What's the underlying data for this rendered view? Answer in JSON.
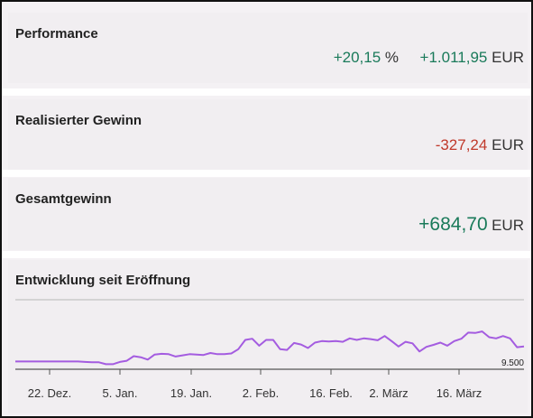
{
  "performance": {
    "title": "Performance",
    "percent_value": "+20,15",
    "percent_unit": "%",
    "amount_value": "+1.011,95",
    "amount_unit": "EUR"
  },
  "realized": {
    "title": "Realisierter Gewinn",
    "value": "-327,24",
    "unit": "EUR"
  },
  "total": {
    "title": "Gesamtgewinn",
    "value": "+684,70",
    "unit": "EUR"
  },
  "chart_section": {
    "title": "Entwicklung seit Eröffnung"
  },
  "colors": {
    "positive": "#1a7a5a",
    "negative": "#c0392b",
    "line": "#a45ce0"
  },
  "chart_data": {
    "type": "line",
    "title": "Entwicklung seit Eröffnung",
    "xlabel": "",
    "ylabel": "",
    "x_tick_labels": [
      "22. Dez.",
      "5. Jan.",
      "19. Jan.",
      "2. Feb.",
      "16. Feb.",
      "2. März",
      "16. März"
    ],
    "y_tick_labels": [
      "9.500"
    ],
    "ylim": [
      9400,
      11200
    ],
    "grid": false,
    "series": [
      {
        "values": [
          9600,
          9600,
          9600,
          9600,
          9600,
          9600,
          9600,
          9600,
          9600,
          9600,
          9590,
          9580,
          9580,
          9530,
          9530,
          9590,
          9620,
          9740,
          9710,
          9650,
          9780,
          9800,
          9790,
          9730,
          9760,
          9790,
          9780,
          9770,
          9820,
          9790,
          9790,
          9810,
          9920,
          10160,
          10190,
          10010,
          10160,
          10160,
          9920,
          9900,
          10080,
          10040,
          9950,
          10090,
          10130,
          10120,
          10130,
          10110,
          10200,
          10160,
          10200,
          10180,
          10150,
          10260,
          10130,
          9990,
          10110,
          10070,
          9860,
          9980,
          10030,
          10090,
          10010,
          10130,
          10190,
          10350,
          10340,
          10380,
          10230,
          10200,
          10260,
          10200,
          9970,
          9990
        ]
      }
    ]
  }
}
